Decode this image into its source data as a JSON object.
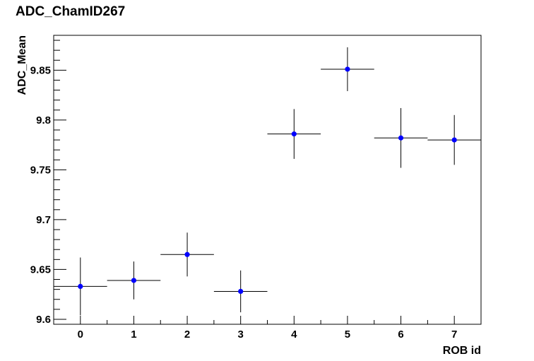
{
  "chart_data": {
    "type": "scatter",
    "title": "ADC_ChamID267",
    "xlabel": "ROB id",
    "ylabel": "ADC_Mean",
    "xlim": [
      -0.5,
      7.5
    ],
    "ylim": [
      9.595,
      9.885
    ],
    "x_ticks": [
      "0",
      "1",
      "2",
      "3",
      "4",
      "5",
      "6",
      "7"
    ],
    "y_ticks": [
      "9.6",
      "9.65",
      "9.7",
      "9.75",
      "9.8",
      "9.85"
    ],
    "grid": false,
    "marker_color": "#0000ff",
    "points": [
      {
        "x": 0,
        "y": 9.633,
        "x_err": 0.5,
        "y_err": 0.029
      },
      {
        "x": 1,
        "y": 9.639,
        "x_err": 0.5,
        "y_err": 0.019
      },
      {
        "x": 2,
        "y": 9.665,
        "x_err": 0.5,
        "y_err": 0.022
      },
      {
        "x": 3,
        "y": 9.628,
        "x_err": 0.5,
        "y_err": 0.021
      },
      {
        "x": 4,
        "y": 9.786,
        "x_err": 0.5,
        "y_err": 0.025
      },
      {
        "x": 5,
        "y": 9.851,
        "x_err": 0.5,
        "y_err": 0.022
      },
      {
        "x": 6,
        "y": 9.782,
        "x_err": 0.5,
        "y_err": 0.03
      },
      {
        "x": 7,
        "y": 9.78,
        "x_err": 0.5,
        "y_err": 0.025
      }
    ]
  }
}
